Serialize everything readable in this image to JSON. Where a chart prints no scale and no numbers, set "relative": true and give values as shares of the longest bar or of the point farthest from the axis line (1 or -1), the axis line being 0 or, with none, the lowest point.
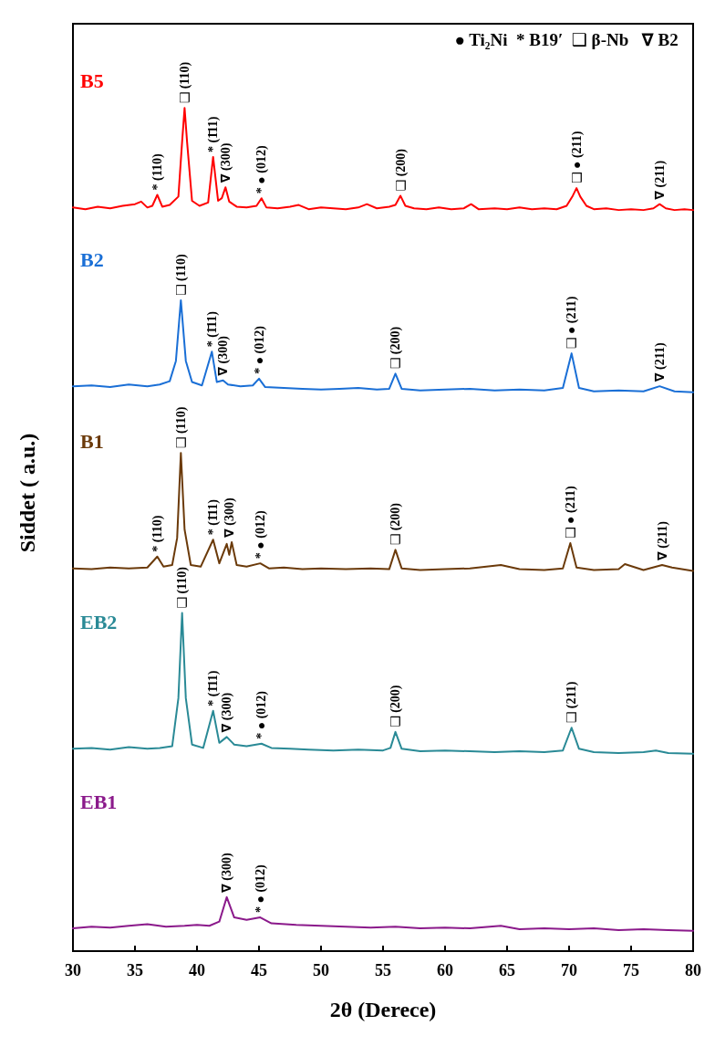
{
  "chart_data": {
    "type": "line",
    "relative": true,
    "xlabel": "2θ (Derece)",
    "ylabel": "Siddet ( a.u.)",
    "xlim": [
      30,
      80
    ],
    "xticks": [
      30,
      35,
      40,
      45,
      50,
      55,
      60,
      65,
      70,
      75,
      80
    ],
    "tick_labels": "x",
    "grid": false,
    "marker": "none",
    "line_style": "solid",
    "series": [
      {
        "name": "B5",
        "color": "#ff0000",
        "x": [
          30,
          31,
          32,
          33,
          34,
          35,
          35.5,
          36,
          36.4,
          36.8,
          37.2,
          37.8,
          38.5,
          38.8,
          39.0,
          39.2,
          39.6,
          40.2,
          40.9,
          41.3,
          41.7,
          42.0,
          42.3,
          42.6,
          43.2,
          44,
          44.8,
          45.2,
          45.6,
          46.5,
          47.5,
          48.2,
          49,
          50,
          51,
          52,
          53,
          53.7,
          54.5,
          55.5,
          56.0,
          56.4,
          56.8,
          57.5,
          58.5,
          59.5,
          60.5,
          61.5,
          62.1,
          62.7,
          64,
          65,
          66,
          67,
          68,
          69,
          69.8,
          70.3,
          70.6,
          70.9,
          71.4,
          72,
          73,
          74,
          75,
          76,
          76.8,
          77.3,
          77.8,
          78.5,
          79.3,
          80
        ],
        "values": [
          0.882,
          0.88,
          0.883,
          0.881,
          0.884,
          0.886,
          0.889,
          0.882,
          0.884,
          0.897,
          0.883,
          0.885,
          0.895,
          0.96,
          1.0,
          0.96,
          0.89,
          0.884,
          0.888,
          0.942,
          0.89,
          0.893,
          0.906,
          0.889,
          0.883,
          0.882,
          0.884,
          0.893,
          0.882,
          0.881,
          0.883,
          0.885,
          0.88,
          0.882,
          0.881,
          0.88,
          0.882,
          0.886,
          0.881,
          0.883,
          0.885,
          0.896,
          0.884,
          0.881,
          0.88,
          0.882,
          0.88,
          0.881,
          0.886,
          0.88,
          0.881,
          0.88,
          0.882,
          0.88,
          0.881,
          0.88,
          0.884,
          0.896,
          0.905,
          0.895,
          0.884,
          0.88,
          0.881,
          0.879,
          0.88,
          0.879,
          0.881,
          0.886,
          0.881,
          0.879,
          0.88,
          0.879
        ]
      },
      {
        "name": "B2",
        "color": "#1a6fd6",
        "x": [
          30,
          31.5,
          33,
          34.5,
          36,
          37,
          37.8,
          38.3,
          38.7,
          39.1,
          39.6,
          40.4,
          41.2,
          41.6,
          42.1,
          42.5,
          43.5,
          44.5,
          45.0,
          45.5,
          47,
          48.5,
          50,
          51.5,
          53,
          54.5,
          55.5,
          56.0,
          56.5,
          58,
          60,
          62,
          64,
          66,
          68,
          69.5,
          70.2,
          70.8,
          72,
          74,
          76,
          77.3,
          78.5,
          80
        ],
        "values": [
          0.67,
          0.671,
          0.669,
          0.672,
          0.67,
          0.672,
          0.676,
          0.7,
          0.772,
          0.7,
          0.675,
          0.671,
          0.711,
          0.675,
          0.677,
          0.672,
          0.67,
          0.671,
          0.679,
          0.669,
          0.668,
          0.667,
          0.666,
          0.667,
          0.668,
          0.666,
          0.667,
          0.685,
          0.667,
          0.665,
          0.666,
          0.667,
          0.665,
          0.666,
          0.665,
          0.668,
          0.709,
          0.668,
          0.664,
          0.665,
          0.664,
          0.67,
          0.664,
          0.663
        ]
      },
      {
        "name": "B1",
        "color": "#6b3a0a",
        "x": [
          30,
          31.5,
          33,
          34.5,
          36,
          36.8,
          37.3,
          38.0,
          38.4,
          38.7,
          39.0,
          39.5,
          40.3,
          41.3,
          41.8,
          42.4,
          42.6,
          42.8,
          43.2,
          44,
          45.1,
          45.8,
          47,
          48.5,
          50,
          52,
          54,
          55.5,
          56.0,
          56.5,
          58,
          60,
          62,
          64.5,
          66,
          68,
          69.5,
          70.1,
          70.6,
          72,
          74,
          74.5,
          76,
          77.5,
          78.3,
          80
        ],
        "values": [
          0.454,
          0.453,
          0.455,
          0.454,
          0.455,
          0.468,
          0.456,
          0.458,
          0.49,
          0.591,
          0.5,
          0.458,
          0.456,
          0.488,
          0.46,
          0.483,
          0.47,
          0.485,
          0.458,
          0.456,
          0.46,
          0.454,
          0.455,
          0.453,
          0.454,
          0.453,
          0.454,
          0.453,
          0.476,
          0.454,
          0.452,
          0.453,
          0.454,
          0.458,
          0.453,
          0.452,
          0.454,
          0.484,
          0.455,
          0.452,
          0.453,
          0.459,
          0.452,
          0.458,
          0.455,
          0.451
        ]
      },
      {
        "name": "EB2",
        "color": "#2a8a96",
        "x": [
          30,
          31.5,
          33,
          34.5,
          36,
          37,
          38.0,
          38.5,
          38.8,
          39.1,
          39.6,
          40.5,
          41.3,
          41.8,
          42.4,
          43,
          44,
          45.2,
          46,
          47.5,
          49,
          51,
          53,
          55,
          55.6,
          56.0,
          56.5,
          58,
          60,
          62,
          64,
          66,
          68,
          69.5,
          70.2,
          70.8,
          72,
          74,
          76,
          77,
          78,
          80
        ],
        "values": [
          0.24,
          0.241,
          0.239,
          0.242,
          0.24,
          0.241,
          0.243,
          0.3,
          0.401,
          0.3,
          0.245,
          0.241,
          0.285,
          0.247,
          0.254,
          0.245,
          0.243,
          0.246,
          0.241,
          0.24,
          0.239,
          0.238,
          0.239,
          0.238,
          0.241,
          0.26,
          0.24,
          0.237,
          0.238,
          0.237,
          0.236,
          0.237,
          0.236,
          0.238,
          0.265,
          0.24,
          0.236,
          0.235,
          0.236,
          0.238,
          0.235,
          0.234
        ]
      },
      {
        "name": "EB1",
        "color": "#8b1a8b",
        "x": [
          30,
          31.5,
          33,
          34.5,
          36,
          37.5,
          39,
          40,
          41,
          41.8,
          42.4,
          43,
          44,
          45.1,
          46,
          48,
          50,
          52,
          54,
          56,
          58,
          60,
          62,
          64.5,
          66,
          68,
          70,
          72,
          74,
          76,
          78,
          80
        ],
        "values": [
          0.027,
          0.029,
          0.028,
          0.03,
          0.032,
          0.029,
          0.03,
          0.031,
          0.03,
          0.035,
          0.064,
          0.04,
          0.037,
          0.04,
          0.033,
          0.031,
          0.03,
          0.029,
          0.028,
          0.029,
          0.027,
          0.028,
          0.027,
          0.03,
          0.026,
          0.027,
          0.026,
          0.027,
          0.025,
          0.026,
          0.025,
          0.024
        ]
      }
    ],
    "annotations": [
      "● Ti₂Ni  * B19′  ❑ β-Nb   ∇ B2",
      {
        "text": "* (110)",
        "x": 36.8,
        "y": 0.897
      },
      {
        "text": "❑ (110)",
        "x": 39.0,
        "y": 1.0
      },
      {
        "text": "* (1̄11)",
        "x": 41.3,
        "y": 0.942
      },
      {
        "text": "∇ (300)",
        "x": 42.3,
        "y": 0.906
      },
      {
        "text": "* ● (012)",
        "x": 45.2,
        "y": 0.893
      },
      {
        "text": "❑ (200)",
        "x": 56.4,
        "y": 0.896
      },
      {
        "text": "❑ ● (211)",
        "x": 70.6,
        "y": 0.905
      },
      {
        "text": "∇ (211)",
        "x": 77.3,
        "y": 0.886
      },
      {
        "text": "❑ (110)",
        "x": 38.7,
        "y": 0.772
      },
      {
        "text": "* (1̄11)",
        "x": 41.2,
        "y": 0.711
      },
      {
        "text": "∇ (300)",
        "x": 42.1,
        "y": 0.677
      },
      {
        "text": "* ● (012)",
        "x": 45.0,
        "y": 0.679
      },
      {
        "text": "❑ (200)",
        "x": 56.0,
        "y": 0.685
      },
      {
        "text": "❑ ● (211)",
        "x": 70.2,
        "y": 0.709
      },
      {
        "text": "∇ (211)",
        "x": 77.3,
        "y": 0.67
      },
      {
        "text": "* (110)",
        "x": 36.8,
        "y": 0.468
      },
      {
        "text": "❑ (110)",
        "x": 38.7,
        "y": 0.591
      },
      {
        "text": "* (1̄11)",
        "x": 41.3,
        "y": 0.488
      },
      {
        "text": "∇ (300)",
        "x": 42.6,
        "y": 0.485
      },
      {
        "text": "* ● (012)",
        "x": 45.1,
        "y": 0.46
      },
      {
        "text": "❑ (200)",
        "x": 56.0,
        "y": 0.476
      },
      {
        "text": "❑ ● (211)",
        "x": 70.1,
        "y": 0.484
      },
      {
        "text": "∇ (211)",
        "x": 77.5,
        "y": 0.458
      },
      {
        "text": "❑ (110)",
        "x": 38.8,
        "y": 0.401
      },
      {
        "text": "* (1̄11)",
        "x": 41.3,
        "y": 0.285
      },
      {
        "text": "∇ (300)",
        "x": 42.4,
        "y": 0.254
      },
      {
        "text": "* ● (012)",
        "x": 45.2,
        "y": 0.246
      },
      {
        "text": "❑ (200)",
        "x": 56.0,
        "y": 0.26
      },
      {
        "text": "❑ (211)",
        "x": 70.2,
        "y": 0.265
      },
      {
        "text": "∇ (300)",
        "x": 42.4,
        "y": 0.064
      },
      {
        "text": "* ● (012)",
        "x": 45.1,
        "y": 0.04
      }
    ]
  }
}
